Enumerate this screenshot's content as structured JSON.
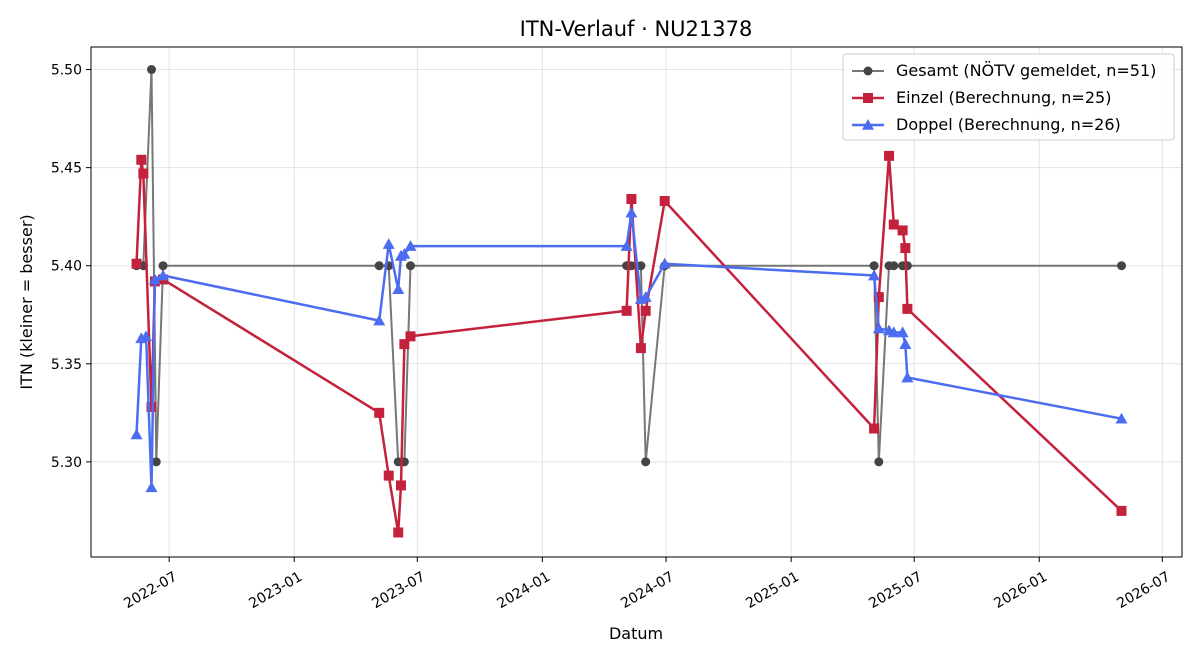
{
  "chart_data": {
    "type": "line",
    "title": "ITN-Verlauf · NU21378",
    "xlabel": "Datum",
    "ylabel": "ITN  (kleiner = besser)",
    "grid": true,
    "legend_position": "top-right",
    "x_axis_type": "date",
    "xlim": [
      "2022-03-08",
      "2026-07-30"
    ],
    "ylim": [
      5.2515,
      5.5115
    ],
    "x_ticks": [
      "2022-07-01",
      "2023-01-01",
      "2023-07-01",
      "2024-01-01",
      "2024-07-01",
      "2025-01-01",
      "2025-07-01",
      "2026-01-01",
      "2026-07-01"
    ],
    "x_tick_labels": [
      "2022-07",
      "2023-01",
      "2023-07",
      "2024-01",
      "2024-07",
      "2025-01",
      "2025-07",
      "2026-01",
      "2026-07"
    ],
    "y_ticks": [
      5.3,
      5.35,
      5.4,
      5.45,
      5.5
    ],
    "y_tick_labels": [
      "5.30",
      "5.35",
      "5.40",
      "5.45",
      "5.50"
    ],
    "series": [
      {
        "name": "Gesamt (NÖTV gemeldet, n=51)",
        "color": "#555555",
        "marker": "circle",
        "x": [
          "2022-05-14",
          "2022-05-24",
          "2022-06-05",
          "2022-06-12",
          "2022-06-22",
          "2023-05-06",
          "2023-05-20",
          "2023-06-03",
          "2023-06-12",
          "2023-06-21",
          "2024-05-04",
          "2024-05-11",
          "2024-05-25",
          "2024-06-01",
          "2024-06-29",
          "2025-05-03",
          "2025-05-10",
          "2025-05-25",
          "2025-06-01",
          "2025-06-14",
          "2025-06-21",
          "2026-05-02"
        ],
        "y": [
          5.4,
          5.4,
          5.5,
          5.3,
          5.4,
          5.4,
          5.4,
          5.3,
          5.3,
          5.4,
          5.4,
          5.4,
          5.4,
          5.3,
          5.4,
          5.4,
          5.3,
          5.4,
          5.4,
          5.4,
          5.4,
          5.4
        ]
      },
      {
        "name": "Einzel (Berechnung, n=25)",
        "color": "#c4223c",
        "marker": "square",
        "x": [
          "2022-05-14",
          "2022-05-21",
          "2022-05-24",
          "2022-06-05",
          "2022-06-10",
          "2022-06-22",
          "2023-05-06",
          "2023-05-20",
          "2023-06-03",
          "2023-06-07",
          "2023-06-12",
          "2023-06-21",
          "2024-05-04",
          "2024-05-11",
          "2024-05-25",
          "2024-06-01",
          "2024-06-29",
          "2025-05-03",
          "2025-05-10",
          "2025-05-25",
          "2025-06-01",
          "2025-06-14",
          "2025-06-18",
          "2025-06-21",
          "2026-05-02"
        ],
        "y": [
          5.401,
          5.454,
          5.447,
          5.328,
          5.392,
          5.393,
          5.325,
          5.293,
          5.264,
          5.288,
          5.36,
          5.364,
          5.377,
          5.434,
          5.358,
          5.377,
          5.433,
          5.317,
          5.384,
          5.456,
          5.421,
          5.418,
          5.409,
          5.378,
          5.275
        ]
      },
      {
        "name": "Doppel (Berechnung, n=26)",
        "color": "#4d6df0",
        "marker": "triangle",
        "x": [
          "2022-05-14",
          "2022-05-21",
          "2022-05-28",
          "2022-06-05",
          "2022-06-10",
          "2022-06-22",
          "2023-05-06",
          "2023-05-20",
          "2023-06-03",
          "2023-06-07",
          "2023-06-12",
          "2023-06-21",
          "2024-05-04",
          "2024-05-11",
          "2024-05-25",
          "2024-06-01",
          "2024-06-29",
          "2025-05-03",
          "2025-05-10",
          "2025-05-25",
          "2025-06-01",
          "2025-06-14",
          "2025-06-18",
          "2025-06-21",
          "2026-05-02"
        ],
        "y": [
          5.314,
          5.363,
          5.364,
          5.287,
          5.393,
          5.395,
          5.372,
          5.411,
          5.388,
          5.405,
          5.406,
          5.41,
          5.41,
          5.427,
          5.383,
          5.384,
          5.401,
          5.395,
          5.368,
          5.367,
          5.366,
          5.366,
          5.36,
          5.343,
          5.322
        ]
      }
    ]
  }
}
